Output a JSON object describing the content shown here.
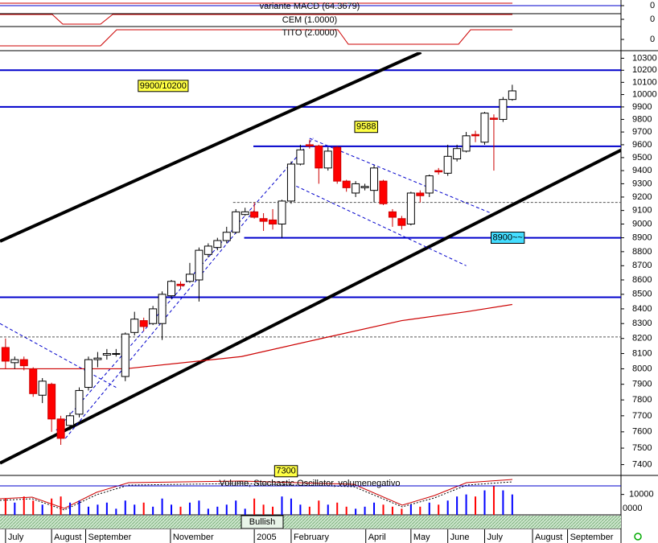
{
  "chart_data": {
    "type": "candlestick",
    "log_scale": true,
    "xlim": [
      -0.6,
      66.8
    ],
    "xticks": [
      {
        "value": 0,
        "label": "July"
      },
      {
        "value": 5,
        "label": "August"
      },
      {
        "value": 8.7,
        "label": "September"
      },
      {
        "value": 17.9,
        "label": "November"
      },
      {
        "value": 27,
        "label": "2005"
      },
      {
        "value": 31,
        "label": "February"
      },
      {
        "value": 39.1,
        "label": "April"
      },
      {
        "value": 44,
        "label": "May"
      },
      {
        "value": 48,
        "label": "June"
      },
      {
        "value": 52,
        "label": "July"
      },
      {
        "value": 57.2,
        "label": "August"
      },
      {
        "value": 61,
        "label": "September"
      }
    ],
    "ylim": [
      7340,
      10350
    ],
    "yticks": [
      7400,
      7500,
      7600,
      7700,
      7800,
      7900,
      8000,
      8100,
      8200,
      8300,
      8400,
      8500,
      8600,
      8700,
      8800,
      8900,
      9000,
      9100,
      9200,
      9300,
      9400,
      9500,
      9600,
      9700,
      9800,
      9900,
      10000,
      10100,
      10200,
      10300
    ],
    "up_color": "#ffffff",
    "down_color": "#ff0000",
    "open": [
      8140,
      8040,
      8060,
      8000,
      7830,
      7900,
      7680,
      7640,
      7710,
      7880,
      8060,
      8090,
      8100,
      7950,
      8240,
      8320,
      8300,
      8300,
      8490,
      8570,
      8590,
      8600,
      8780,
      8830,
      8880,
      8940,
      9070,
      9090,
      9040,
      9030,
      9000,
      9170,
      9450,
      9600,
      9590,
      9420,
      9580,
      9320,
      9230,
      9270,
      9250,
      9320,
      9090,
      9040,
      9000,
      9230,
      9230,
      9400,
      9380,
      9490,
      9550,
      9680,
      9620,
      9810,
      9800,
      9960
    ],
    "high": [
      8200,
      8080,
      8080,
      8010,
      7940,
      7910,
      7700,
      7720,
      7880,
      8080,
      8110,
      8130,
      8130,
      8240,
      8380,
      8340,
      8420,
      8520,
      8600,
      8590,
      8720,
      8830,
      8860,
      8900,
      8980,
      9110,
      9120,
      9160,
      9080,
      9110,
      9180,
      9470,
      9600,
      9640,
      9600,
      9580,
      9590,
      9330,
      9320,
      9300,
      9440,
      9330,
      9110,
      9060,
      9240,
      9250,
      9370,
      9420,
      9600,
      9600,
      9700,
      9710,
      9860,
      9840,
      9980,
      10080
    ],
    "low": [
      8000,
      8000,
      7990,
      7820,
      7780,
      7600,
      7520,
      7610,
      7690,
      7860,
      8010,
      8060,
      8080,
      7920,
      8220,
      8250,
      8290,
      8190,
      8470,
      8540,
      8580,
      8450,
      8760,
      8810,
      8860,
      8930,
      9060,
      9040,
      8950,
      8960,
      8900,
      9150,
      9440,
      9570,
      9300,
      9400,
      9300,
      9240,
      9200,
      9250,
      9160,
      9140,
      8980,
      8960,
      8990,
      9160,
      9200,
      9370,
      9360,
      9470,
      9540,
      9620,
      9600,
      9400,
      9780,
      9950
    ],
    "close": [
      8050,
      8060,
      8020,
      7840,
      7920,
      7680,
      7560,
      7700,
      7860,
      8060,
      8070,
      8100,
      8100,
      8230,
      8330,
      8280,
      8400,
      8500,
      8590,
      8560,
      8640,
      8810,
      8840,
      8880,
      8940,
      9090,
      9090,
      9050,
      9020,
      9000,
      9170,
      9450,
      9560,
      9590,
      9420,
      9550,
      9320,
      9270,
      9300,
      9280,
      9420,
      9150,
      9050,
      8990,
      9230,
      9210,
      9360,
      9390,
      9510,
      9570,
      9670,
      9670,
      9850,
      9800,
      9960,
      10030
    ],
    "levels": [
      {
        "value": 10200,
        "color": "#0000cc",
        "dashed": false
      },
      {
        "value": 9900,
        "color": "#0000cc",
        "dashed": false
      },
      {
        "value": 9588,
        "color": "#0000cc",
        "dashed": false,
        "start": 26.9
      },
      {
        "value": 9160,
        "color": "#555555",
        "dashed": true,
        "start": 24.7
      },
      {
        "value": 8900,
        "color": "#0000cc",
        "dashed": false,
        "start": 25.9
      },
      {
        "value": 8480,
        "color": "#0000cc",
        "dashed": false
      },
      {
        "value": 8210,
        "color": "#555555",
        "dashed": true
      }
    ],
    "trendlines": [
      {
        "x": [
          -0.6,
          45.1
        ],
        "y": [
          8875,
          10350
        ],
        "color": "#000000",
        "dashed": false
      },
      {
        "x": [
          -0.6,
          66.8
        ],
        "y": [
          7409,
          9558
        ],
        "color": "#000000",
        "dashed": false
      },
      {
        "x": [
          5.5,
          33.4
        ],
        "y": [
          7610,
          9652
        ],
        "color": "#0000cc",
        "dashed": true
      },
      {
        "x": [
          6.5,
          27
        ],
        "y": [
          7560,
          9100
        ],
        "color": "#0000cc",
        "dashed": true
      },
      {
        "x": [
          33,
          52.7
        ],
        "y": [
          9650,
          9080
        ],
        "color": "#0000cc",
        "dashed": true
      },
      {
        "x": [
          31,
          50
        ],
        "y": [
          9300,
          8700
        ],
        "color": "#0000cc",
        "dashed": true
      },
      {
        "x": [
          -0.6,
          12
        ],
        "y": [
          8300,
          7880
        ],
        "color": "#0000cc",
        "dashed": true
      }
    ],
    "moving_average": {
      "color": "#cc0000",
      "x": [
        -0.6,
        13,
        25.6,
        34.3,
        43,
        50,
        55
      ],
      "values": [
        8000,
        8000,
        8080,
        8200,
        8320,
        8380,
        8430
      ]
    },
    "annotations": [
      {
        "text": "9900/10200",
        "x": 14.4,
        "y": 10070,
        "color": "#ffff44"
      },
      {
        "text": "9588",
        "x": 37.9,
        "y": 9740,
        "color": "#ffff44"
      },
      {
        "text": "8900~~",
        "x": 52.7,
        "y": 8900,
        "color": "#44ddff"
      },
      {
        "text": "7300",
        "x": 29.2,
        "y": 7360,
        "color": "#ffff44"
      }
    ],
    "indicators": [
      {
        "title": "variante MACD (64.3679)",
        "yticks": [
          0
        ]
      },
      {
        "title": "CEM (1.0000)",
        "yticks": [
          0
        ]
      },
      {
        "title": "TITO (2.0000)",
        "yticks": [
          0
        ]
      }
    ],
    "volume": {
      "title": "Volume, Stochastic Oscillator, volumenegativo",
      "up_color": "#0000ff",
      "down_color": "#ff0000",
      "ylim": [
        0,
        14200
      ],
      "yticks": [
        10000
      ],
      "cut_label": "0000",
      "values": [
        8000,
        6000,
        9000,
        7000,
        5000,
        8000,
        9000,
        6000,
        7000,
        4000,
        5000,
        6000,
        3000,
        7000,
        5000,
        6000,
        4000,
        8000,
        5000,
        4000,
        6000,
        7000,
        3000,
        4000,
        5000,
        7000,
        3000,
        8000,
        5000,
        4000,
        9000,
        8000,
        5000,
        4000,
        7000,
        5000,
        6000,
        4000,
        3000,
        4000,
        6000,
        5000,
        4000,
        3000,
        5000,
        4000,
        6000,
        5000,
        7000,
        9000,
        10000,
        9000,
        12000,
        14000,
        12000,
        10000
      ]
    },
    "sentiment": "Bullish"
  }
}
